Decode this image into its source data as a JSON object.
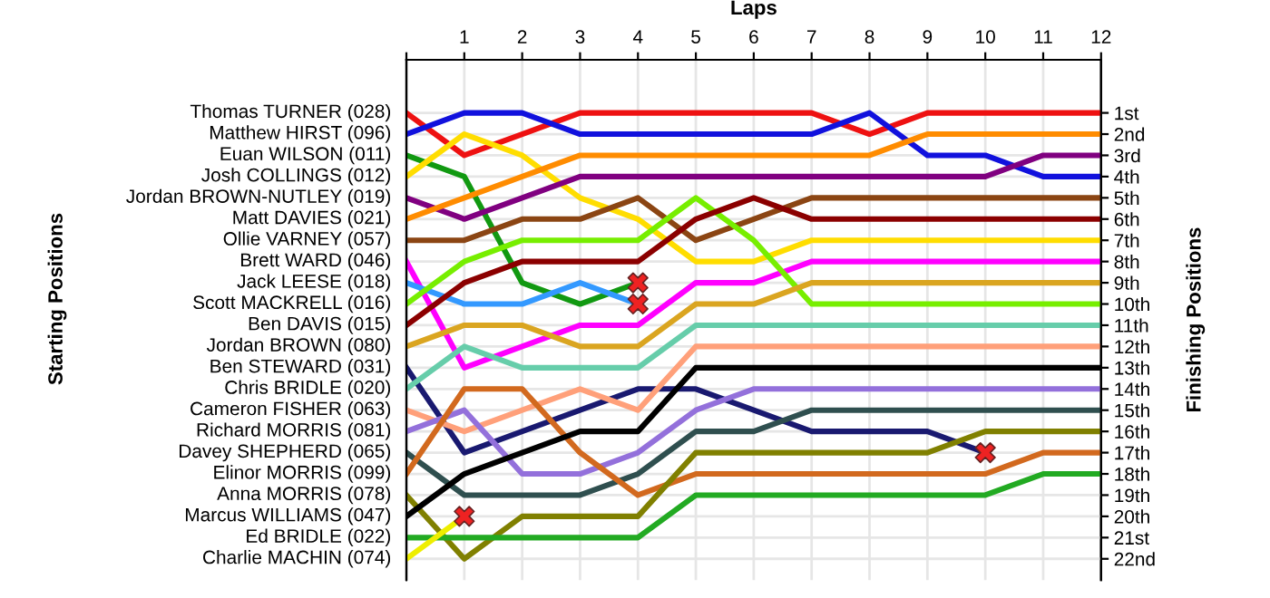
{
  "chart_data": {
    "type": "line",
    "xlabel": "Laps",
    "annotations": [
      "Starting Positions"
    ],
    "y2label": "Finishing Positions",
    "x": [
      0,
      1,
      2,
      3,
      4,
      5,
      6,
      7,
      8,
      9,
      10,
      11,
      12
    ],
    "xlim": [
      0,
      12
    ],
    "xticks": [
      {
        "value": 0,
        "label": null
      },
      1,
      2,
      3,
      4,
      5,
      6,
      7,
      8,
      9,
      10,
      11,
      12
    ],
    "y2lim": [
      23,
      -1.5
    ],
    "y2ticks": [
      {
        "value": 1,
        "label": "1st"
      },
      {
        "value": 2,
        "label": "2nd"
      },
      {
        "value": 3,
        "label": "3rd"
      },
      {
        "value": 4,
        "label": "4th"
      },
      {
        "value": 5,
        "label": "5th"
      },
      {
        "value": 6,
        "label": "6th"
      },
      {
        "value": 7,
        "label": "7th"
      },
      {
        "value": 8,
        "label": "8th"
      },
      {
        "value": 9,
        "label": "9th"
      },
      {
        "value": 10,
        "label": "10th"
      },
      {
        "value": 11,
        "label": "11th"
      },
      {
        "value": 12,
        "label": "12th"
      },
      {
        "value": 13,
        "label": "13th"
      },
      {
        "value": 14,
        "label": "14th"
      },
      {
        "value": 15,
        "label": "15th"
      },
      {
        "value": 16,
        "label": "16th"
      },
      {
        "value": 17,
        "label": "17th"
      },
      {
        "value": 18,
        "label": "18th"
      },
      {
        "value": 19,
        "label": "19th"
      },
      {
        "value": 20,
        "label": "20th"
      },
      {
        "value": 21,
        "label": "21st"
      },
      {
        "value": 22,
        "label": "22nd"
      }
    ],
    "grid": true,
    "series": [
      {
        "name": "Thomas TURNER (028)",
        "axis": "y2",
        "color": "#ee1111",
        "values": [
          1,
          3,
          2,
          1,
          1,
          1,
          1,
          1,
          2,
          1,
          1,
          1,
          1
        ]
      },
      {
        "name": "Matthew HIRST (096)",
        "axis": "y2",
        "color": "#1111dd",
        "values": [
          2,
          1,
          1,
          2,
          2,
          2,
          2,
          2,
          1,
          3,
          3,
          4,
          4
        ]
      },
      {
        "name": "Euan WILSON (011)",
        "axis": "y2",
        "color": "#119911",
        "values": [
          3,
          4,
          9,
          10,
          9,
          null,
          null,
          null,
          null,
          null,
          null,
          null,
          null
        ]
      },
      {
        "name": "Josh COLLINGS (012)",
        "axis": "y2",
        "color": "#ffdd00",
        "values": [
          4,
          2,
          3,
          5,
          6,
          8,
          8,
          7,
          7,
          7,
          7,
          7,
          7
        ]
      },
      {
        "name": "Jordan BROWN-NUTLEY (019)",
        "axis": "y2",
        "color": "#800080",
        "values": [
          5,
          6,
          5,
          4,
          4,
          4,
          4,
          4,
          4,
          4,
          4,
          3,
          3
        ]
      },
      {
        "name": "Matt DAVIES (021)",
        "axis": "y2",
        "color": "#ff8c00",
        "values": [
          6,
          5,
          4,
          3,
          3,
          3,
          3,
          3,
          3,
          2,
          2,
          2,
          2
        ]
      },
      {
        "name": "Ollie VARNEY (057)",
        "axis": "y2",
        "color": "#8b4513",
        "values": [
          7,
          7,
          6,
          6,
          5,
          7,
          6,
          5,
          5,
          5,
          5,
          5,
          5
        ]
      },
      {
        "name": "Brett WARD (046)",
        "axis": "y2",
        "color": "#ff00ff",
        "values": [
          8,
          13,
          12,
          11,
          11,
          9,
          9,
          8,
          8,
          8,
          8,
          8,
          8
        ]
      },
      {
        "name": "Jack LEESE (018)",
        "axis": "y2",
        "color": "#3399ff",
        "values": [
          9,
          10,
          10,
          9,
          10,
          null,
          null,
          null,
          null,
          null,
          null,
          null,
          null
        ]
      },
      {
        "name": "Scott MACKRELL (016)",
        "axis": "y2",
        "color": "#77ee00",
        "values": [
          10,
          8,
          7,
          7,
          7,
          5,
          7,
          10,
          10,
          10,
          10,
          10,
          10
        ]
      },
      {
        "name": "Ben DAVIS (015)",
        "axis": "y2",
        "color": "#8b0000",
        "values": [
          11,
          9,
          8,
          8,
          8,
          6,
          5,
          6,
          6,
          6,
          6,
          6,
          6
        ]
      },
      {
        "name": "Jordan BROWN (080)",
        "axis": "y2",
        "color": "#daa520",
        "values": [
          12,
          11,
          11,
          12,
          12,
          10,
          10,
          9,
          9,
          9,
          9,
          9,
          9
        ]
      },
      {
        "name": "Ben STEWARD (031)",
        "axis": "y2",
        "color": "#191970",
        "values": [
          13,
          17,
          16,
          15,
          14,
          14,
          15,
          16,
          16,
          16,
          17,
          null,
          null
        ]
      },
      {
        "name": "Chris BRIDLE (020)",
        "axis": "y2",
        "color": "#66cdaa",
        "values": [
          14,
          12,
          13,
          13,
          13,
          11,
          11,
          11,
          11,
          11,
          11,
          11,
          11
        ]
      },
      {
        "name": "Cameron FISHER (063)",
        "axis": "y2",
        "color": "#ffa07a",
        "values": [
          15,
          16,
          15,
          14,
          15,
          12,
          12,
          12,
          12,
          12,
          12,
          12,
          12
        ]
      },
      {
        "name": "Richard MORRIS (081)",
        "axis": "y2",
        "color": "#9370db",
        "values": [
          16,
          15,
          18,
          18,
          17,
          15,
          14,
          14,
          14,
          14,
          14,
          14,
          14
        ]
      },
      {
        "name": "Davey SHEPHERD (065)",
        "axis": "y2",
        "color": "#2f4f4f",
        "values": [
          17,
          19,
          19,
          19,
          18,
          16,
          16,
          15,
          15,
          15,
          15,
          15,
          15
        ]
      },
      {
        "name": "Elinor MORRIS (099)",
        "axis": "y2",
        "color": "#d2691e",
        "values": [
          18,
          14,
          14,
          17,
          19,
          18,
          18,
          18,
          18,
          18,
          18,
          17,
          17
        ]
      },
      {
        "name": "Anna MORRIS (078)",
        "axis": "y2",
        "color": "#808000",
        "values": [
          19,
          22,
          20,
          20,
          20,
          17,
          17,
          17,
          17,
          17,
          16,
          16,
          16
        ]
      },
      {
        "name": "Marcus WILLIAMS (047)",
        "axis": "y2",
        "color": "#000000",
        "values": [
          20,
          18,
          17,
          16,
          16,
          13,
          13,
          13,
          13,
          13,
          13,
          13,
          13
        ]
      },
      {
        "name": "Ed BRIDLE (022)",
        "axis": "y2",
        "color": "#22aa22",
        "values": [
          21,
          21,
          21,
          21,
          21,
          19,
          19,
          19,
          19,
          19,
          19,
          18,
          18
        ]
      },
      {
        "name": "Charlie MACHIN (074)",
        "axis": "y2",
        "color": "#eeee00",
        "values": [
          22,
          20,
          null,
          null,
          null,
          null,
          null,
          null,
          null,
          null,
          null,
          null,
          null
        ]
      },
      {
        "type": "scatter",
        "axis": "y2",
        "marker": "cross",
        "color": "#ee2222",
        "x": [
          4,
          4,
          10,
          1
        ],
        "values": [
          9,
          10,
          17,
          20
        ]
      }
    ]
  }
}
